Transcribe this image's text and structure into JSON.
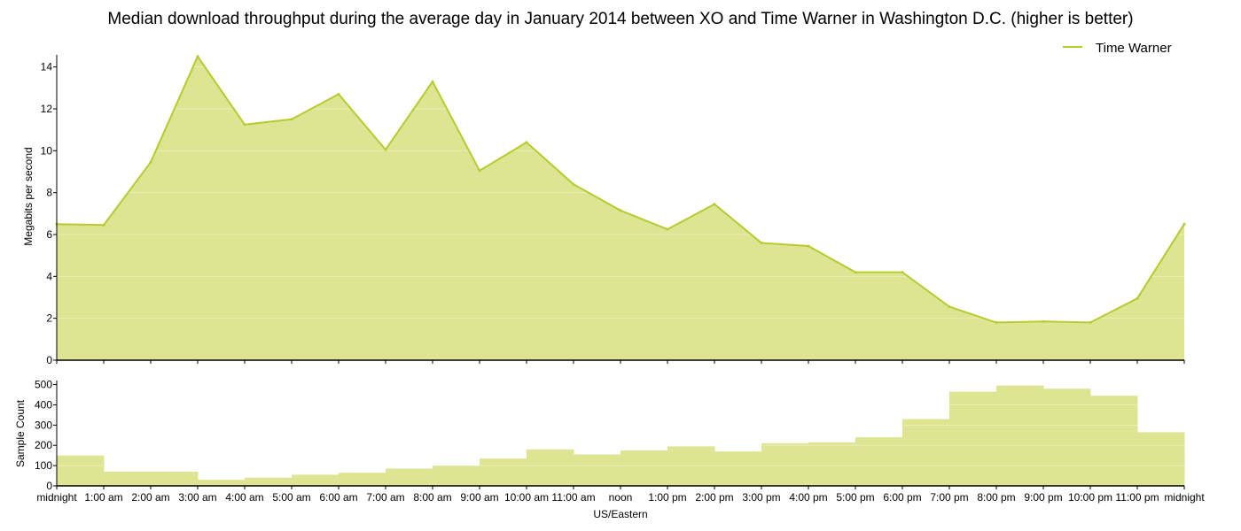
{
  "colors": {
    "line": "#b5cc2e",
    "fill": "#dde592",
    "axis": "#000000"
  },
  "chart_data": {
    "title": "Median download throughput during the average day in January 2014 between XO and Time Warner in Washington D.C. (higher is better)",
    "xlabel": "US/Eastern",
    "x_tick_labels": [
      "midnight",
      "1:00 am",
      "2:00 am",
      "3:00 am",
      "4:00 am",
      "5:00 am",
      "6:00 am",
      "7:00 am",
      "8:00 am",
      "9:00 am",
      "10:00 am",
      "11:00 am",
      "noon",
      "1:00 pm",
      "2:00 pm",
      "3:00 pm",
      "4:00 pm",
      "5:00 pm",
      "6:00 pm",
      "7:00 pm",
      "8:00 pm",
      "9:00 pm",
      "10:00 pm",
      "11:00 pm",
      "midnight"
    ],
    "legend": {
      "position": "top-right"
    },
    "throughput": {
      "type": "area",
      "ylabel": "Megabits per second",
      "ylim": [
        0,
        15
      ],
      "y_ticks": [
        0,
        2,
        4,
        6,
        8,
        10,
        12,
        14
      ],
      "grid": true,
      "series": [
        {
          "name": "Time Warner",
          "x": [
            0,
            1,
            2,
            3,
            4,
            5,
            6,
            7,
            8,
            9,
            10,
            11,
            12,
            13,
            14,
            15,
            16,
            17,
            18,
            19,
            20,
            21,
            22,
            23,
            24
          ],
          "values": [
            6.5,
            6.45,
            9.45,
            14.5,
            11.25,
            11.5,
            12.7,
            10.05,
            13.3,
            9.05,
            10.4,
            8.4,
            7.15,
            6.25,
            7.45,
            5.6,
            5.45,
            4.2,
            4.2,
            2.55,
            1.8,
            1.85,
            1.8,
            2.95,
            6.5
          ]
        }
      ]
    },
    "samples": {
      "type": "bar",
      "ylabel": "Sample Count",
      "ylim": [
        0,
        520
      ],
      "y_ticks": [
        0,
        100,
        200,
        300,
        400,
        500
      ],
      "grid": true,
      "values": [
        150,
        70,
        70,
        30,
        40,
        55,
        65,
        85,
        100,
        135,
        180,
        155,
        175,
        195,
        170,
        210,
        215,
        240,
        330,
        465,
        495,
        480,
        445,
        265
      ]
    }
  }
}
